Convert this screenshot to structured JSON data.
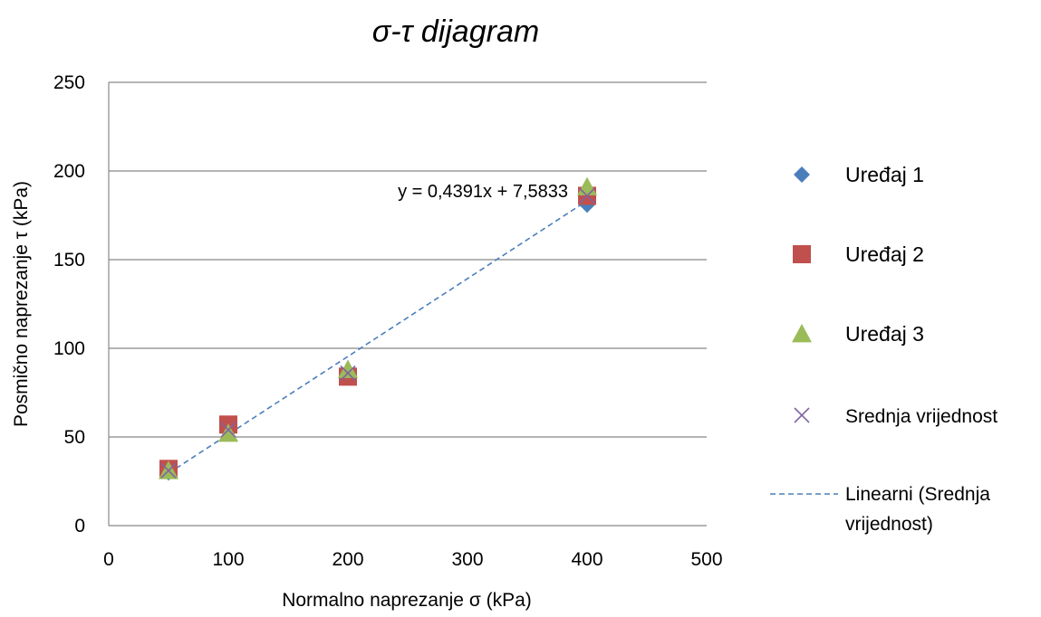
{
  "chart_data": {
    "type": "scatter",
    "title": "σ-τ dijagram",
    "xlabel": "Normalno naprezanje σ (kPa)",
    "ylabel": "Posmično naprezanje τ (kPa)",
    "xlim": [
      0,
      500
    ],
    "ylim": [
      0,
      250
    ],
    "x_ticks": [
      0,
      100,
      200,
      300,
      400,
      500
    ],
    "y_ticks": [
      0,
      50,
      100,
      150,
      200,
      250
    ],
    "grid": "horizontal",
    "legend_position": "right",
    "series": [
      {
        "name": "Uređaj 1",
        "marker": "diamond",
        "color": "#4a7ebb",
        "points": [
          [
            50,
            30
          ],
          [
            100,
            53
          ],
          [
            200,
            86
          ],
          [
            400,
            181
          ]
        ]
      },
      {
        "name": "Uređaj 2",
        "marker": "square",
        "color": "#c0504d",
        "points": [
          [
            50,
            32
          ],
          [
            100,
            57
          ],
          [
            200,
            84
          ],
          [
            400,
            186
          ]
        ]
      },
      {
        "name": "Uređaj 3",
        "marker": "triangle",
        "color": "#9bbb59",
        "points": [
          [
            50,
            31
          ],
          [
            100,
            52
          ],
          [
            200,
            88
          ],
          [
            400,
            191
          ]
        ]
      },
      {
        "name": "Srednja vrijednost",
        "marker": "x",
        "color": "#8064a2",
        "points": [
          [
            50,
            31
          ],
          [
            100,
            54
          ],
          [
            200,
            86
          ],
          [
            400,
            186
          ]
        ]
      }
    ],
    "trendline": {
      "name": "Linearni (Srednja vrijednost)",
      "name_lines": [
        "Linearni (Srednja",
        "vrijednost)"
      ],
      "color": "#4a7ebb",
      "style": "dashed",
      "slope": 0.4391,
      "intercept": 7.5833,
      "x_range": [
        50,
        400
      ],
      "equation": "y = 0,4391x + 7,5833"
    }
  }
}
